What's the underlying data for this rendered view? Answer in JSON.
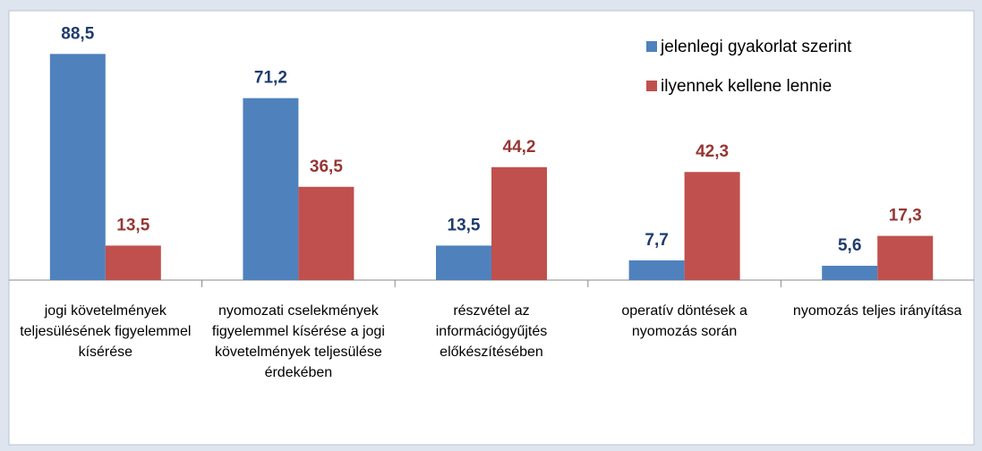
{
  "chart_data": {
    "type": "bar",
    "categories": [
      "jogi követelmények teljesülésének figyelemmel kísérése",
      "nyomozati cselekmények figyelemmel kísérése a jogi követelmények teljesülése érdekében",
      "részvétel az információgyűjtés előkészítésében",
      "operatív döntések a nyomozás során",
      "nyomozás teljes irányítása"
    ],
    "series": [
      {
        "name": "jelenlegi gyakorlat szerint",
        "color": "#4f81bd",
        "label_color": "#1f3b6e",
        "values": [
          88.5,
          71.2,
          13.5,
          7.7,
          5.6
        ],
        "value_labels": [
          "88,5",
          "71,2",
          "13,5",
          "7,7",
          "5,6"
        ]
      },
      {
        "name": "ilyennek kellene lennie",
        "color": "#c0504d",
        "label_color": "#953735",
        "values": [
          13.5,
          36.5,
          44.2,
          42.3,
          17.3
        ],
        "value_labels": [
          "13,5",
          "36,5",
          "44,2",
          "42,3",
          "17,3"
        ]
      }
    ],
    "ylim": [
      0,
      97
    ],
    "legend": "upper right"
  }
}
